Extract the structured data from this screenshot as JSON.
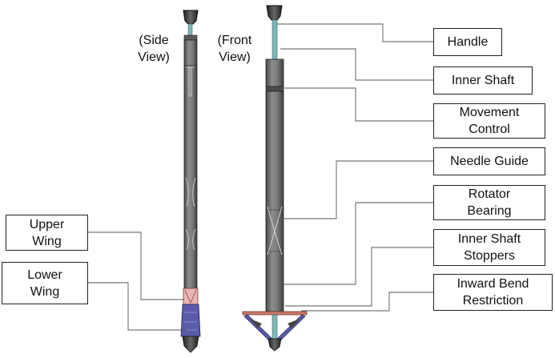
{
  "view_labels": {
    "side": "(Side\nView)",
    "front": "(Front\nView)"
  },
  "callouts": {
    "handle": "Handle",
    "inner_shaft": "Inner Shaft",
    "movement_control": "Movement\nControl",
    "needle_guide": "Needle Guide",
    "rotator_bearing": "Rotator\nBearing",
    "inner_shaft_stoppers": "Inner Shaft\nStoppers",
    "inward_bend_restriction": "Inward Bend\nRestriction",
    "upper_wing": "Upper\nWing",
    "lower_wing": "Lower\nWing"
  },
  "colors": {
    "shaft": "#7a7a7a",
    "shaft_dark": "#555555",
    "handle_rod": "#7fb6b8",
    "upper_wing": "#e8b4b4",
    "lower_wing": "#5a5aa8",
    "restriction": "#c97a6a",
    "leader": "#555555"
  }
}
